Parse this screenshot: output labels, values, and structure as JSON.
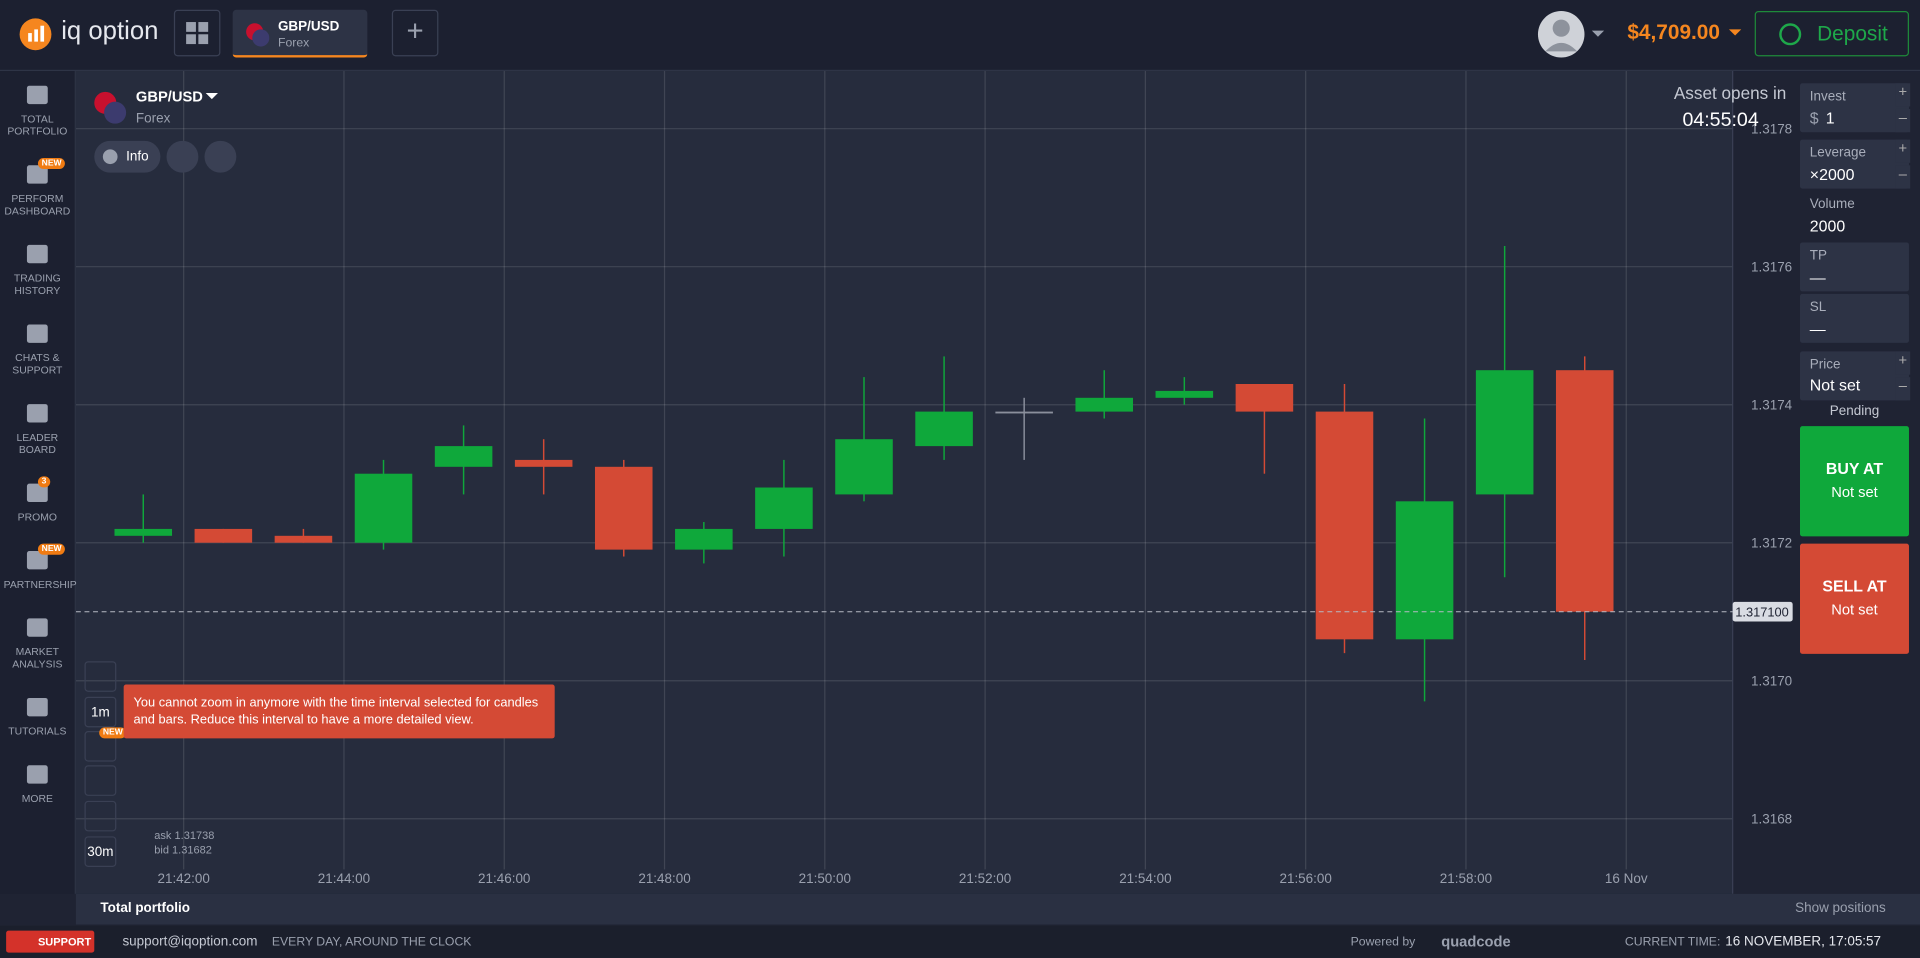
{
  "header": {
    "logo": "iq option",
    "tab": {
      "symbol": "GBP/USD",
      "market": "Forex"
    },
    "balance": "$4,709.00",
    "deposit": "Deposit"
  },
  "sidebar": [
    {
      "label": "TOTAL PORTFOLIO"
    },
    {
      "label": "PERFORM DASHBOARD",
      "badge": "NEW"
    },
    {
      "label": "TRADING HISTORY"
    },
    {
      "label": "CHATS & SUPPORT"
    },
    {
      "label": "LEADER BOARD"
    },
    {
      "label": "PROMO",
      "badge": "3"
    },
    {
      "label": "PARTNERSHIP",
      "badge": "NEW"
    },
    {
      "label": "MARKET ANALYSIS"
    },
    {
      "label": "TUTORIALS"
    },
    {
      "label": "MORE"
    }
  ],
  "asset": {
    "name": "GBP/USD",
    "market": "Forex",
    "info": "Info",
    "opens_label": "Asset opens in",
    "opens_timer": "04:55:04"
  },
  "tools": {
    "interval": "1m",
    "badge": "NEW",
    "period": "30m",
    "tooltip": "You cannot zoom in anymore with the time interval selected for candles and bars. Reduce this interval to have a more detailed view.",
    "ask": "ask 1.31738",
    "bid": "bid 1.31682"
  },
  "trade_panel": {
    "invest": {
      "label": "Invest",
      "currency": "$",
      "value": "1"
    },
    "leverage": {
      "label": "Leverage",
      "value": "×2000"
    },
    "volume": {
      "label": "Volume",
      "value": "2000"
    },
    "tp": {
      "label": "TP",
      "value": "—"
    },
    "sl": {
      "label": "SL",
      "value": "—"
    },
    "price": {
      "label": "Price",
      "value": "Not set"
    },
    "pending": "Pending",
    "buy": {
      "label": "BUY AT",
      "value": "Not set"
    },
    "sell": {
      "label": "SELL AT",
      "value": "Not set"
    }
  },
  "chart_data": {
    "type": "candlestick",
    "ylim": [
      1.3167,
      1.31788
    ],
    "yticks": [
      1.3168,
      {
        "value": 1.317,
        "label": "1.3170"
      },
      1.3172,
      1.3174,
      1.3176,
      1.3178
    ],
    "x_labels": [
      "21:42:00",
      "21:44:00",
      "21:46:00",
      "21:48:00",
      "21:50:00",
      "21:52:00",
      "21:54:00",
      "21:56:00",
      "21:58:00",
      "16 Nov"
    ],
    "up_color": "#0fa83b",
    "down_color": "#d44a35",
    "doji_color": "#8a8f9c",
    "grid": true,
    "current_price": {
      "value": 1.3171,
      "label": "1.317100"
    },
    "open": [
      1.31721,
      1.31722,
      1.31721,
      1.3172,
      1.31731,
      1.31732,
      1.31731,
      1.31719,
      1.31722,
      1.31727,
      1.31734,
      1.31739,
      1.31739,
      1.31741,
      1.31743,
      1.31739,
      1.31706,
      1.31727,
      1.31745
    ],
    "high": [
      1.31727,
      1.31722,
      1.31722,
      1.31732,
      1.31737,
      1.31735,
      1.31732,
      1.31723,
      1.31732,
      1.31744,
      1.31747,
      1.31741,
      1.31745,
      1.31744,
      1.31743,
      1.31743,
      1.31738,
      1.31763,
      1.31747
    ],
    "low": [
      1.3172,
      1.3172,
      1.3172,
      1.31719,
      1.31727,
      1.31727,
      1.31718,
      1.31717,
      1.31718,
      1.31726,
      1.31732,
      1.31732,
      1.31738,
      1.3174,
      1.3173,
      1.31704,
      1.31697,
      1.31715,
      1.31703
    ],
    "close": [
      1.31722,
      1.3172,
      1.3172,
      1.3173,
      1.31734,
      1.31731,
      1.31719,
      1.31722,
      1.31728,
      1.31735,
      1.31739,
      1.31739,
      1.31741,
      1.31742,
      1.31739,
      1.31706,
      1.31726,
      1.31745,
      1.3171
    ]
  },
  "footer": {
    "portfolio": "Total portfolio",
    "show_positions": "Show positions",
    "support": "SUPPORT",
    "email": "support@iqoption.com",
    "hours": "EVERY DAY, AROUND THE CLOCK",
    "powered": "Powered by",
    "brand": "quadcode",
    "time_label": "CURRENT TIME:",
    "time": "16 NOVEMBER, 17:05:57"
  }
}
